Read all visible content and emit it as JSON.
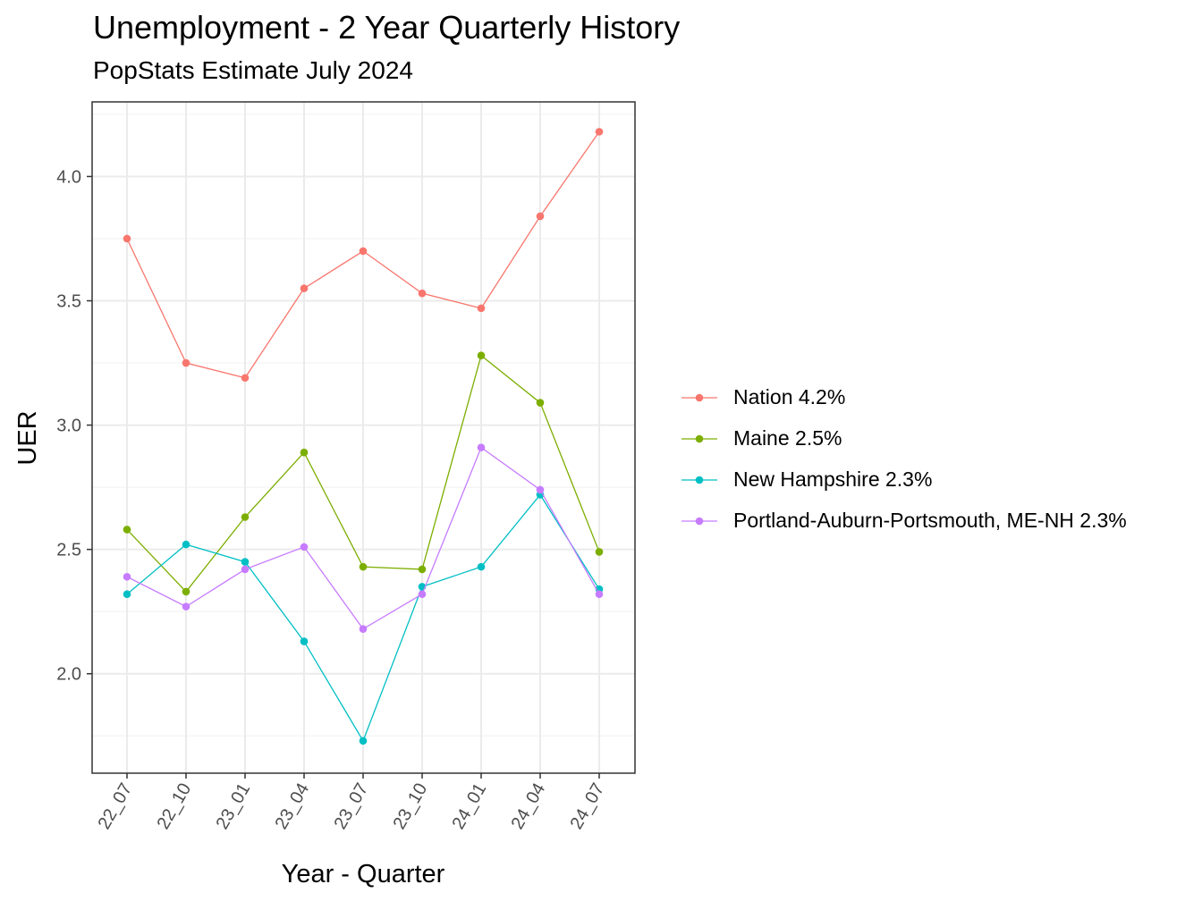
{
  "chart_data": {
    "type": "line",
    "title": "Unemployment - 2 Year Quarterly History",
    "subtitle": "PopStats Estimate July 2024",
    "xlabel": "Year - Quarter",
    "ylabel": "UER",
    "categories": [
      "22_07",
      "22_10",
      "23_01",
      "23_04",
      "23_07",
      "23_10",
      "24_01",
      "24_04",
      "24_07"
    ],
    "ylim": [
      1.6,
      4.3
    ],
    "yticks": [
      "2.0",
      "2.5",
      "3.0",
      "3.5",
      "4.0"
    ],
    "grid": true,
    "legend_position": "right",
    "series": [
      {
        "name": "Nation 4.2%",
        "color": "#F8766D",
        "values": [
          3.75,
          3.25,
          3.19,
          3.55,
          3.7,
          3.53,
          3.47,
          3.84,
          4.18
        ]
      },
      {
        "name": "Maine 2.5%",
        "color": "#7CAE00",
        "values": [
          2.58,
          2.33,
          2.63,
          2.89,
          2.43,
          2.42,
          3.28,
          3.09,
          2.49
        ]
      },
      {
        "name": "New Hampshire 2.3%",
        "color": "#00BFC4",
        "values": [
          2.32,
          2.52,
          2.45,
          2.13,
          1.73,
          2.35,
          2.43,
          2.72,
          2.34
        ]
      },
      {
        "name": "Portland-Auburn-Portsmouth, ME-NH 2.3%",
        "color": "#C77CFF",
        "values": [
          2.39,
          2.27,
          2.42,
          2.51,
          2.18,
          2.32,
          2.91,
          2.74,
          2.32
        ]
      }
    ]
  }
}
